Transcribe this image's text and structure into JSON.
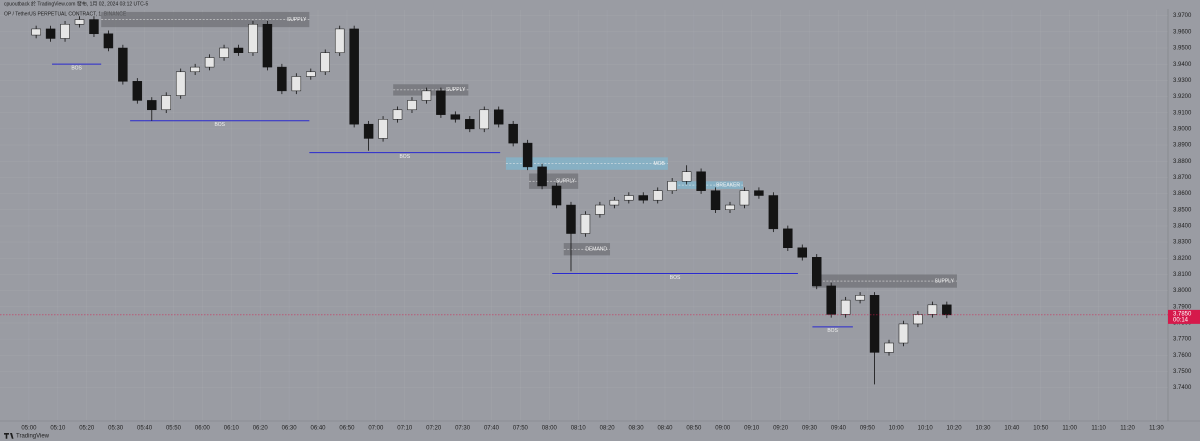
{
  "chart_data": {
    "type": "candlestick",
    "attribution": "cpuoutback 於 TradingView.com 發布, 1月 02, 2024 03:12 UTC-5",
    "title": "OP / TetherUS PERPETUAL CONTRACT, 1, BINANCE",
    "footer": "TradingView",
    "x": [
      "05:00",
      "05:05",
      "05:10",
      "05:15",
      "05:20",
      "05:25",
      "05:30",
      "05:35",
      "05:40",
      "05:45",
      "05:50",
      "05:55",
      "06:00",
      "06:05",
      "06:10",
      "06:15",
      "06:20",
      "06:25",
      "06:30",
      "06:35",
      "06:40",
      "06:45",
      "06:50",
      "06:55",
      "07:00",
      "07:05",
      "07:10",
      "07:15",
      "07:20",
      "07:25",
      "07:30",
      "07:35",
      "07:40",
      "07:45",
      "07:50",
      "07:55",
      "08:00",
      "08:05",
      "08:10",
      "08:15",
      "08:20",
      "08:25",
      "08:30",
      "08:35",
      "08:40",
      "08:45",
      "08:50",
      "08:55",
      "09:00",
      "09:05",
      "09:10",
      "09:15",
      "09:20",
      "09:25",
      "09:30",
      "09:35",
      "09:40",
      "09:45",
      "09:50",
      "09:55",
      "10:00",
      "10:05",
      "10:10",
      "10:15"
    ],
    "open": [
      3.958,
      3.9618,
      3.9559,
      3.9647,
      3.9676,
      3.9588,
      3.95,
      3.9294,
      3.9176,
      3.9118,
      3.9206,
      3.9353,
      3.9382,
      3.9441,
      3.95,
      3.9471,
      3.9647,
      3.9382,
      3.9235,
      3.9324,
      3.9353,
      3.9471,
      3.9618,
      3.9029,
      3.8941,
      3.9059,
      3.9118,
      3.9176,
      3.9235,
      3.9088,
      3.9059,
      3.9,
      3.9118,
      3.9029,
      3.8912,
      3.8765,
      3.8647,
      3.8529,
      3.8353,
      3.8471,
      3.8529,
      3.8559,
      3.8588,
      3.8559,
      3.8618,
      3.8676,
      3.8735,
      3.8618,
      3.85,
      3.8529,
      3.8618,
      3.8588,
      3.8382,
      3.8265,
      3.8206,
      3.8029,
      3.7853,
      3.7941,
      3.7971,
      3.7618,
      3.7676,
      3.7794,
      3.7853,
      3.7912
    ],
    "high": [
      3.9638,
      3.9638,
      3.9667,
      3.9696,
      3.9696,
      3.9608,
      3.952,
      3.9314,
      3.9196,
      3.9226,
      3.9373,
      3.9402,
      3.9461,
      3.952,
      3.952,
      3.9667,
      3.9667,
      3.9402,
      3.9344,
      3.9373,
      3.9491,
      3.9638,
      3.9638,
      3.9049,
      3.9079,
      3.9138,
      3.9196,
      3.9255,
      3.9255,
      3.9108,
      3.9079,
      3.9138,
      3.9138,
      3.9049,
      3.8932,
      3.8785,
      3.8667,
      3.8549,
      3.8491,
      3.8549,
      3.8579,
      3.8608,
      3.8608,
      3.8638,
      3.8696,
      3.8775,
      3.8755,
      3.8638,
      3.8549,
      3.8638,
      3.8638,
      3.8608,
      3.8402,
      3.8285,
      3.8226,
      3.8049,
      3.7961,
      3.7991,
      3.7991,
      3.7696,
      3.7814,
      3.7873,
      3.7932,
      3.7932
    ],
    "low": [
      3.956,
      3.9539,
      3.9539,
      3.9627,
      3.9568,
      3.948,
      3.9274,
      3.9156,
      3.905,
      3.9098,
      3.9186,
      3.9333,
      3.9362,
      3.9421,
      3.9451,
      3.9451,
      3.9362,
      3.9215,
      3.9215,
      3.9304,
      3.9333,
      3.9451,
      3.9009,
      3.8865,
      3.8921,
      3.9039,
      3.9098,
      3.9156,
      3.9068,
      3.9039,
      3.898,
      3.898,
      3.9009,
      3.8892,
      3.8745,
      3.8627,
      3.8509,
      3.812,
      3.8333,
      3.8451,
      3.8509,
      3.8539,
      3.8539,
      3.8539,
      3.8598,
      3.8656,
      3.8598,
      3.848,
      3.848,
      3.8509,
      3.8568,
      3.8362,
      3.8245,
      3.8186,
      3.8009,
      3.7833,
      3.7833,
      3.7921,
      3.742,
      3.7598,
      3.7656,
      3.7774,
      3.7833,
      3.783
    ],
    "close": [
      3.9618,
      3.9559,
      3.9647,
      3.9676,
      3.9588,
      3.95,
      3.9294,
      3.9176,
      3.9118,
      3.9206,
      3.9353,
      3.9382,
      3.9441,
      3.95,
      3.9471,
      3.9647,
      3.9382,
      3.9235,
      3.9324,
      3.9353,
      3.9471,
      3.9618,
      3.9029,
      3.8941,
      3.9059,
      3.9118,
      3.9176,
      3.9235,
      3.9088,
      3.9059,
      3.9,
      3.9118,
      3.9029,
      3.8912,
      3.8765,
      3.8647,
      3.8529,
      3.8353,
      3.8471,
      3.8529,
      3.8559,
      3.8588,
      3.8559,
      3.8618,
      3.8676,
      3.8735,
      3.8618,
      3.85,
      3.8529,
      3.8618,
      3.8588,
      3.8382,
      3.8265,
      3.8206,
      3.8029,
      3.7853,
      3.7941,
      3.7971,
      3.7618,
      3.7676,
      3.7794,
      3.7853,
      3.7912,
      3.785
    ],
    "up_color": "#e6e6e6",
    "down_color": "#141414",
    "xlim": [
      "04:50",
      "11:34"
    ],
    "xticks": [
      "05:00",
      "05:10",
      "05:20",
      "05:30",
      "05:40",
      "05:50",
      "06:00",
      "06:10",
      "06:20",
      "06:30",
      "06:40",
      "06:50",
      "07:00",
      "07:10",
      "07:20",
      "07:30",
      "07:40",
      "07:50",
      "08:00",
      "08:10",
      "08:20",
      "08:30",
      "08:40",
      "08:50",
      "09:00",
      "09:10",
      "09:20",
      "09:30",
      "09:40",
      "09:50",
      "10:00",
      "10:10",
      "10:20",
      "10:30",
      "10:40",
      "10:50",
      "11:00",
      "11:10",
      "11:20",
      "11:30"
    ],
    "ylim": [
      3.72,
      3.9735
    ],
    "yticks": [
      {
        "value": 3.74,
        "label": "3.7400"
      },
      {
        "value": 3.75,
        "label": "3.7500"
      },
      {
        "value": 3.76,
        "label": "3.7600"
      },
      {
        "value": 3.77,
        "label": "3.7700"
      },
      {
        "value": 3.78,
        "label": "3.7800"
      },
      {
        "value": 3.79,
        "label": "3.7900"
      },
      {
        "value": 3.8,
        "label": "3.8000"
      },
      {
        "value": 3.81,
        "label": "3.8100"
      },
      {
        "value": 3.82,
        "label": "3.8200"
      },
      {
        "value": 3.83,
        "label": "3.8300"
      },
      {
        "value": 3.84,
        "label": "3.8400"
      },
      {
        "value": 3.85,
        "label": "3.8500"
      },
      {
        "value": 3.86,
        "label": "3.8600"
      },
      {
        "value": 3.87,
        "label": "3.8700"
      },
      {
        "value": 3.88,
        "label": "3.8800"
      },
      {
        "value": 3.89,
        "label": "3.8900"
      },
      {
        "value": 3.9,
        "label": "3.9000"
      },
      {
        "value": 3.91,
        "label": "3.9100"
      },
      {
        "value": 3.92,
        "label": "3.9200"
      },
      {
        "value": 3.93,
        "label": "3.9300"
      },
      {
        "value": 3.94,
        "label": "3.9400"
      },
      {
        "value": 3.95,
        "label": "3.9500"
      },
      {
        "value": 3.96,
        "label": "3.9600"
      },
      {
        "value": 3.97,
        "label": "3.9700"
      }
    ],
    "grid": true,
    "last_price": {
      "value": 3.785,
      "label": "3.7850",
      "countdown": "00:14",
      "color": "#d6194b"
    },
    "annotations": [
      {
        "kind": "line",
        "text": "BOS",
        "price": 3.94,
        "from": "05:08",
        "to": "05:25",
        "color": "#2a2acf"
      },
      {
        "kind": "line",
        "text": "BOS",
        "price": 3.905,
        "from": "05:35",
        "to": "06:37",
        "color": "#2a2acf"
      },
      {
        "kind": "line",
        "text": "BOS",
        "price": 3.8853,
        "from": "06:37",
        "to": "07:43",
        "color": "#2a2acf"
      },
      {
        "kind": "line",
        "text": "BOS",
        "price": 3.8106,
        "from": "08:01",
        "to": "09:26",
        "color": "#2a2acf"
      },
      {
        "kind": "line",
        "text": "BOS",
        "price": 3.7776,
        "from": "09:31",
        "to": "09:45",
        "color": "#2a2acf"
      },
      {
        "kind": "zone",
        "text": "SUPPLY",
        "top": 3.9723,
        "bottom": 3.9629,
        "from": "05:25",
        "to": "06:37",
        "color": "#6e6f74"
      },
      {
        "kind": "zone",
        "text": "SUPPLY",
        "top": 3.9276,
        "bottom": 3.9206,
        "from": "07:06",
        "to": "07:32",
        "color": "#6e6f74"
      },
      {
        "kind": "zone",
        "text": "MOB",
        "top": 3.8824,
        "bottom": 3.8747,
        "from": "07:45",
        "to": "08:41",
        "color": "#7fb9d1"
      },
      {
        "kind": "zone",
        "text": "SUPPLY",
        "top": 3.8724,
        "bottom": 3.8629,
        "from": "07:53",
        "to": "08:10",
        "color": "#6e6f74"
      },
      {
        "kind": "zone",
        "text": "BREAKER",
        "top": 3.8676,
        "bottom": 3.8629,
        "from": "08:41",
        "to": "09:07",
        "color": "#7fb9d1"
      },
      {
        "kind": "zone",
        "text": "DEMAND",
        "top": 3.8294,
        "bottom": 3.8218,
        "from": "08:05",
        "to": "08:21",
        "color": "#6e6f74"
      },
      {
        "kind": "zone",
        "text": "SUPPLY",
        "top": 3.81,
        "bottom": 3.8018,
        "from": "09:31",
        "to": "10:21",
        "color": "#6e6f74"
      }
    ]
  }
}
